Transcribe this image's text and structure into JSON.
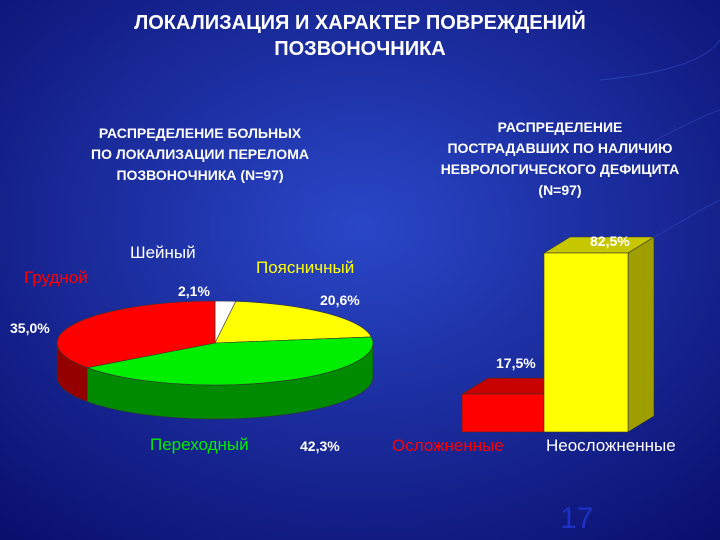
{
  "slide": {
    "title_line1": "ЛОКАЛИЗАЦИЯ И ХАРАКТЕР ПОВРЕЖДЕНИЙ",
    "title_line2": "ПОЗВОНОЧНИКА",
    "page_number": "17"
  },
  "colors": {
    "background_center": "#2a47c8",
    "background_edge": "#0a0f6e",
    "red": "#ff0000",
    "green": "#00ee00",
    "yellow": "#ffff00",
    "white": "#ffffff"
  },
  "chart_data": [
    {
      "type": "pie",
      "title_lines": [
        "РАСПРЕДЕЛЕНИЕ БОЛЬНЫХ",
        "ПО ЛОКАЛИЗАЦИИ ПЕРЕЛОМА",
        "ПОЗВОНОЧНИКА (N=97)"
      ],
      "slices": [
        {
          "label": "Шейный",
          "value": 2.1,
          "value_label": "2,1%",
          "color": "#ffffff",
          "label_color": "#ffffff"
        },
        {
          "label": "Поясничный",
          "value": 20.6,
          "value_label": "20,6%",
          "color": "#ffff00",
          "label_color": "#ffff00"
        },
        {
          "label": "Переходный",
          "value": 42.3,
          "value_label": "42,3%",
          "color": "#00ee00",
          "label_color": "#00ee00"
        },
        {
          "label": "Грудной",
          "value": 35.0,
          "value_label": "35,0%",
          "color": "#ff0000",
          "label_color": "#ff0000"
        }
      ]
    },
    {
      "type": "bar",
      "title_lines": [
        "РАСПРЕДЕЛЕНИЕ",
        "ПОСТРАДАВШИХ ПО НАЛИЧИЮ",
        "НЕВРОЛОГИЧЕСКОГО ДЕФИЦИТА",
        "(N=97)"
      ],
      "categories": [
        "Осложненные",
        "Неосложненные"
      ],
      "values": [
        17.5,
        82.5
      ],
      "value_labels": [
        "17,5%",
        "82,5%"
      ],
      "colors": [
        "#ff0000",
        "#ffff00"
      ],
      "category_label_colors": [
        "#ff0000",
        "#ffffff"
      ],
      "ylim": [
        0,
        82.5
      ]
    }
  ]
}
